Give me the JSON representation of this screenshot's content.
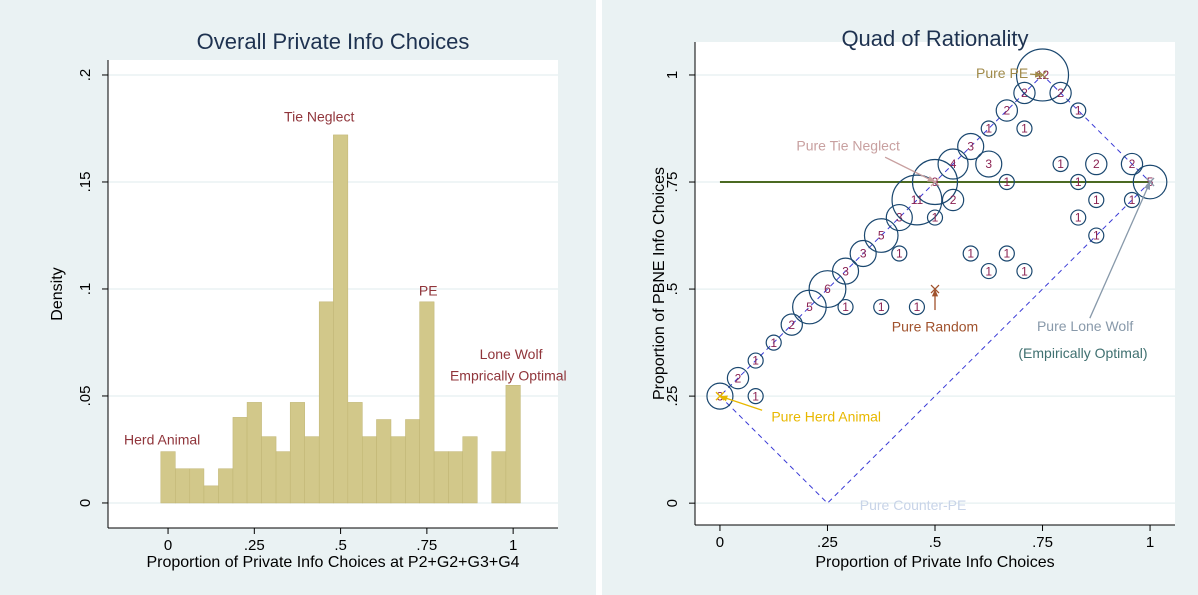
{
  "chart_data": [
    {
      "type": "histogram",
      "title": "Overall Private Info Choices",
      "x_label": "Proportion of Private Info Choices at P2+G2+G3+G4",
      "y_label": "Density",
      "bins": [
        -0.021,
        0.021,
        0.063,
        0.104,
        0.146,
        0.188,
        0.229,
        0.271,
        0.313,
        0.354,
        0.396,
        0.438,
        0.479,
        0.521,
        0.563,
        0.604,
        0.646,
        0.688,
        0.729,
        0.771,
        0.813,
        0.854,
        0.896,
        0.938,
        0.979,
        1.021
      ],
      "values": [
        0.024,
        0.016,
        0.016,
        0.008,
        0.016,
        0.04,
        0.047,
        0.031,
        0.024,
        0.047,
        0.031,
        0.094,
        0.172,
        0.047,
        0.031,
        0.039,
        0.031,
        0.039,
        0.094,
        0.024,
        0.024,
        0.031,
        0,
        0.024,
        0.055
      ],
      "color": "#d2c88a",
      "xlim": [
        -0.174,
        1.13
      ],
      "ylim": [
        -0.0117,
        0.207
      ],
      "xticks": [
        0,
        {
          "value": 0.25,
          "label": ".25"
        },
        {
          "value": 0.5,
          "label": ".5"
        },
        {
          "value": 0.75,
          "label": ".75"
        },
        1
      ],
      "yticks": [
        0,
        {
          "value": 0.05,
          "label": ".05"
        },
        {
          "value": 0.1,
          "label": ".1"
        },
        {
          "value": 0.15,
          "label": ".15"
        },
        {
          "value": 0.2,
          "label": ".2"
        }
      ],
      "grid": true,
      "annotation_color": "#90353b",
      "annotations": [
        {
          "text": "Herd Animal",
          "x": -0.017,
          "y": 0.029
        },
        {
          "text": "Tie Neglect",
          "x": 0.438,
          "y": 0.18
        },
        {
          "text": "PE",
          "x": 0.754,
          "y": 0.0986
        },
        {
          "text": "Lone Wolf",
          "x": 0.994,
          "y": 0.069
        },
        {
          "text": "Emprically Optimal",
          "x": 0.986,
          "y": 0.059
        }
      ]
    },
    {
      "type": "scatter",
      "title": "Quad of Rationality",
      "x_label": "Proportion of Private Info Choices",
      "y_label": "Proportion of PBNE Info Choices",
      "xlim": [
        -0.058,
        1.058
      ],
      "ylim": [
        -0.051,
        1.077
      ],
      "xticks": [
        0,
        {
          "value": 0.25,
          "label": ".25"
        },
        {
          "value": 0.5,
          "label": ".5"
        },
        {
          "value": 0.75,
          "label": ".75"
        },
        1
      ],
      "yticks": [
        0,
        {
          "value": 0.25,
          "label": ".25"
        },
        {
          "value": 0.5,
          "label": ".5"
        },
        {
          "value": 0.75,
          "label": ".75"
        },
        1
      ],
      "grid": true,
      "lines": [
        {
          "x": [
            0,
            1
          ],
          "values": [
            0.75,
            0.75
          ],
          "color": "#4b6a22",
          "dashed": false
        },
        {
          "x": [
            0,
            0.25,
            1,
            0.75,
            0
          ],
          "values": [
            0.25,
            0,
            0.75,
            1,
            0.25
          ],
          "color": "#3b3bd6",
          "dashed": true
        }
      ],
      "series": [
        {
          "color": "#1a476f",
          "label_color": "#8b2252",
          "x": [
            0,
            0.042,
            0.083,
            0.083,
            0.125,
            0.167,
            0.208,
            0.25,
            0.292,
            0.292,
            0.333,
            0.375,
            0.375,
            0.417,
            0.417,
            0.458,
            0.458,
            0.5,
            0.5,
            0.542,
            0.542,
            0.583,
            0.625,
            0.625,
            0.583,
            0.625,
            0.667,
            0.667,
            0.667,
            0.708,
            0.708,
            0.708,
            0.75,
            0.792,
            0.792,
            0.833,
            0.833,
            0.833,
            0.875,
            0.875,
            0.875,
            0.958,
            0.958,
            1
          ],
          "values": [
            0.25,
            0.292,
            0.333,
            0.25,
            0.375,
            0.417,
            0.458,
            0.5,
            0.542,
            0.458,
            0.583,
            0.625,
            0.458,
            0.667,
            0.583,
            0.708,
            0.458,
            0.75,
            0.667,
            0.792,
            0.708,
            0.833,
            0.792,
            0.875,
            0.583,
            0.542,
            0.917,
            0.75,
            0.583,
            0.958,
            0.875,
            0.542,
            1,
            0.958,
            0.792,
            0.917,
            0.75,
            0.667,
            0.792,
            0.708,
            0.625,
            0.792,
            0.708,
            0.75
          ],
          "sizes": [
            3,
            2,
            1,
            1,
            1,
            2,
            5,
            6,
            3,
            1,
            3,
            5,
            1,
            3,
            1,
            11,
            1,
            9,
            1,
            4,
            2,
            3,
            3,
            1,
            1,
            1,
            2,
            1,
            1,
            2,
            1,
            1,
            12,
            2,
            1,
            1,
            1,
            1,
            2,
            1,
            1,
            2,
            1,
            5
          ]
        }
      ],
      "annotations": [
        {
          "text": "Pure PE",
          "x": 0.656,
          "y": 1.002,
          "color": "#a08a4a",
          "arrow_from": [
            0.721,
            1.002
          ],
          "target": [
            0.75,
            1
          ]
        },
        {
          "text": "Pure Tie Neglect",
          "x": 0.298,
          "y": 0.832,
          "color": "#c8a0a0",
          "arrow_from": [
            0.384,
            0.808
          ],
          "target": [
            0.5,
            0.75
          ]
        },
        {
          "text": "Pure Random",
          "x": 0.5,
          "y": 0.409,
          "color": "#a0522d",
          "arrow_from": [
            0.5,
            0.451
          ],
          "target": [
            0.5,
            0.5
          ]
        },
        {
          "text": "Pure Lone Wolf",
          "x": 0.849,
          "y": 0.411,
          "color": "#8899aa",
          "arrow_from": [
            0.86,
            0.432
          ],
          "target": [
            1,
            0.75
          ]
        },
        {
          "text": "(Empirically Optimal)",
          "x": 0.844,
          "y": 0.348,
          "color": "#3f7070"
        },
        {
          "text": "Pure Herd Animal",
          "x": 0.247,
          "y": 0.199,
          "color": "#e8b800",
          "arrow_from": [
            0.098,
            0.217
          ],
          "target": [
            0,
            0.25
          ]
        },
        {
          "text": "Pure Counter-PE",
          "x": 0.449,
          "y": -0.007,
          "color": "#c8d4e8"
        }
      ]
    }
  ]
}
